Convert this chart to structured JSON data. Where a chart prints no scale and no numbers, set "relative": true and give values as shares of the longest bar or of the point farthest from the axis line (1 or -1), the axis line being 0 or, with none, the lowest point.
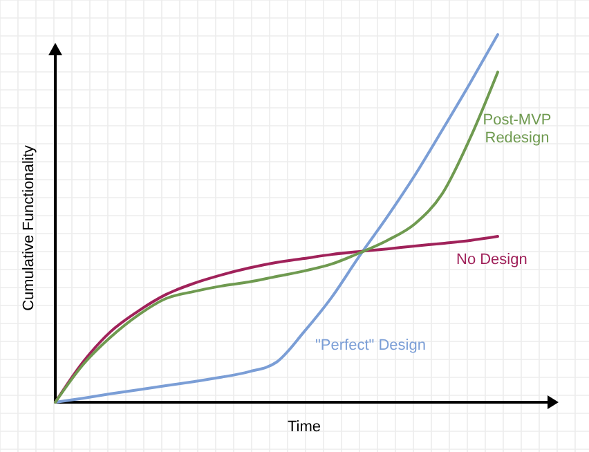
{
  "chart_data": {
    "type": "line",
    "relative": true,
    "xlabel": "Time",
    "ylabel": "Cumulative Functionality",
    "grid": true,
    "marker": "none",
    "line_style": "solid",
    "categories": [
      null,
      null,
      null,
      null,
      null,
      null,
      null,
      null,
      null,
      null,
      null,
      null,
      null,
      null,
      null,
      null,
      null
    ],
    "series": [
      {
        "name": "\"Perfect\" Design",
        "color": "#7b9ed6",
        "values": [
          0,
          0.011,
          0.023,
          0.034,
          0.045,
          0.056,
          0.068,
          0.083,
          0.109,
          0.192,
          0.286,
          0.398,
          0.504,
          0.617,
          0.741,
          0.868,
          1
        ]
      },
      {
        "name": "No Design",
        "color": "#a0225a",
        "values": [
          0,
          0.109,
          0.192,
          0.248,
          0.293,
          0.323,
          0.346,
          0.365,
          0.38,
          0.391,
          0.402,
          0.41,
          0.417,
          0.425,
          0.432,
          0.44,
          0.451
        ]
      },
      {
        "name": "Post-MVP Redesign",
        "color": "#6f9a50",
        "values": [
          0,
          0.102,
          0.177,
          0.237,
          0.282,
          0.301,
          0.316,
          0.327,
          0.342,
          0.357,
          0.376,
          0.406,
          0.44,
          0.485,
          0.568,
          0.718,
          0.898
        ]
      }
    ]
  }
}
